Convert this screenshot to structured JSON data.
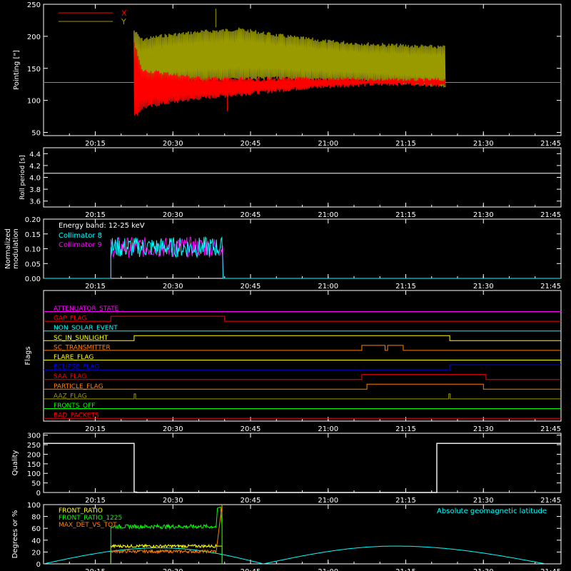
{
  "chart_data": [
    {
      "type": "line",
      "ylabel": "Pointing [\"]",
      "ylim": [
        45,
        250
      ],
      "yticks": [
        50,
        100,
        150,
        200,
        250
      ],
      "xlim": [
        1205,
        1305
      ],
      "xticks": [
        "20:15",
        "20:30",
        "20:45",
        "21:00",
        "21:15",
        "21:30",
        "21:45"
      ],
      "xtick_values": [
        1215,
        1230,
        1245,
        1260,
        1275,
        1290,
        1305
      ],
      "legend": "top-left",
      "series": [
        {
          "name": "X",
          "color": "#ff0000",
          "baseline": 128,
          "x_range": [
            1222.5,
            1282.5
          ],
          "envelope": [
            [
              1222.5,
              72,
              195
            ],
            [
              1224,
              85,
              150
            ],
            [
              1228,
              92,
              146
            ],
            [
              1235,
              100,
              138
            ],
            [
              1245,
              108,
              136
            ],
            [
              1255,
              116,
              137
            ],
            [
              1265,
              121,
              136
            ],
            [
              1275,
              123,
              135
            ],
            [
              1282.5,
              121,
              135
            ]
          ]
        },
        {
          "name": "Y",
          "color": "#999900",
          "baseline": 128,
          "x_range": [
            1222.5,
            1282.5
          ],
          "envelope": [
            [
              1222.5,
              95,
              212
            ],
            [
              1224,
              110,
              198
            ],
            [
              1228,
              125,
              204
            ],
            [
              1235,
              128,
              210
            ],
            [
              1243,
              130,
              214
            ],
            [
              1250,
              132,
              205
            ],
            [
              1260,
              129,
              195
            ],
            [
              1270,
              126,
              190
            ],
            [
              1282.5,
              120,
              186
            ]
          ]
        }
      ]
    },
    {
      "type": "line",
      "ylabel": "Roll period [s]",
      "ylim": [
        3.5,
        4.5
      ],
      "yticks": [
        "3.6",
        "3.8",
        "4.0",
        "4.2",
        "4.4"
      ],
      "ytick_values": [
        3.6,
        3.8,
        4.0,
        4.2,
        4.4
      ],
      "series": [
        {
          "color": "#ffffff",
          "constant": 4.07
        }
      ]
    },
    {
      "type": "line",
      "ylabel": "Normalized modulation",
      "ylim": [
        0,
        0.2
      ],
      "yticks": [
        "0.00",
        "0.05",
        "0.10",
        "0.15",
        "0.20"
      ],
      "ytick_values": [
        0,
        0.05,
        0.1,
        0.15,
        0.2
      ],
      "annotation": "Energy band: 12-25 keV",
      "series": [
        {
          "name": "Collimator 8",
          "color": "#00ffff",
          "active_range": [
            1218,
            1239.7
          ],
          "level": 0.105
        },
        {
          "name": "Collimator 9",
          "color": "#ff00ff",
          "active_range": [
            1218,
            1239.7
          ],
          "level": 0.105
        }
      ]
    },
    {
      "type": "line",
      "ylabel": "Flags",
      "series": [
        {
          "name": "ATTENUATOR_STATE",
          "color": "#ff00ff",
          "steps": []
        },
        {
          "name": "GAP_FLAG",
          "color": "#ff0000",
          "steps": [
            [
              1218,
              1
            ],
            [
              1240,
              0
            ]
          ]
        },
        {
          "name": "NON_SOLAR_EVENT",
          "color": "#00ffff",
          "steps": []
        },
        {
          "name": "SC_IN_SUNLIGHT",
          "color": "#ffff00",
          "steps": [
            [
              1222.5,
              1
            ],
            [
              1283.5,
              0
            ]
          ]
        },
        {
          "name": "SC_TRANSMITTER",
          "color": "#ff8000",
          "steps": [
            [
              1266.5,
              1
            ],
            [
              1271,
              0
            ],
            [
              1271.5,
              1
            ],
            [
              1274.5,
              0
            ]
          ]
        },
        {
          "name": "FLARE_FLAG",
          "color": "#ffff00",
          "steps": []
        },
        {
          "name": "ECLIPSE_FLAG",
          "color": "#0000ff",
          "steps": [
            [
              1222.5,
              0
            ],
            [
              1283.5,
              1
            ]
          ]
        },
        {
          "name": "SAA_FLAG",
          "color": "#ff0000",
          "steps": [
            [
              1266.5,
              1
            ],
            [
              1290.5,
              0
            ]
          ]
        },
        {
          "name": "PARTICLE_FLAG",
          "color": "#ff8000",
          "steps": [
            [
              1267.5,
              1
            ],
            [
              1290,
              0
            ]
          ]
        },
        {
          "name": "AAZ_FLAG",
          "color": "#999900",
          "steps": [
            [
              1222.5,
              1
            ],
            [
              1222.8,
              0
            ],
            [
              1283.3,
              1
            ],
            [
              1283.6,
              0
            ]
          ]
        },
        {
          "name": "FRONTS_OFF",
          "color": "#00ff00",
          "steps": []
        },
        {
          "name": "BAD_PACKETS",
          "color": "#ff0000",
          "steps": []
        }
      ]
    },
    {
      "type": "line",
      "ylabel": "Quality",
      "ylim": [
        0,
        310
      ],
      "yticks": [
        "0",
        "50",
        "100",
        "150",
        "200",
        "250",
        "300"
      ],
      "ytick_values": [
        0,
        50,
        100,
        150,
        200,
        250,
        300
      ],
      "series": [
        {
          "color": "#ffffff",
          "points": [
            [
              1205,
              257
            ],
            [
              1222.5,
              257
            ],
            [
              1222.5,
              2
            ],
            [
              1223,
              2
            ],
            [
              1223,
              0
            ],
            [
              1281,
              0
            ],
            [
              1281,
              257
            ],
            [
              1305,
              257
            ]
          ]
        }
      ]
    },
    {
      "type": "line",
      "ylabel": "Degrees or %",
      "ylim": [
        0,
        100
      ],
      "yticks": [
        "0",
        "20",
        "40",
        "60",
        "80",
        "100"
      ],
      "ytick_values": [
        0,
        20,
        40,
        60,
        80,
        100
      ],
      "annotation": "Absolute geomagnetic latitude",
      "series": [
        {
          "name": "FRONT_RATIO",
          "color": "#ffff00",
          "range": [
            1218,
            1239.5
          ],
          "level": 30
        },
        {
          "name": "FRONT_RATIO_1225",
          "color": "#00ff00",
          "range": [
            1218,
            1239.5
          ],
          "level": 63
        },
        {
          "name": "MAX_DET_VS_TOT",
          "color": "#ff8000",
          "range": [
            1218,
            1239.5
          ],
          "level": 21
        },
        {
          "name": "Absolute geomagnetic latitude",
          "color": "#00ffff",
          "peaks": [
            [
              1205,
              0
            ],
            [
              1227.5,
              27
            ],
            [
              1247.5,
              0
            ],
            [
              1273,
              30
            ],
            [
              1302,
              0
            ]
          ]
        }
      ]
    }
  ]
}
